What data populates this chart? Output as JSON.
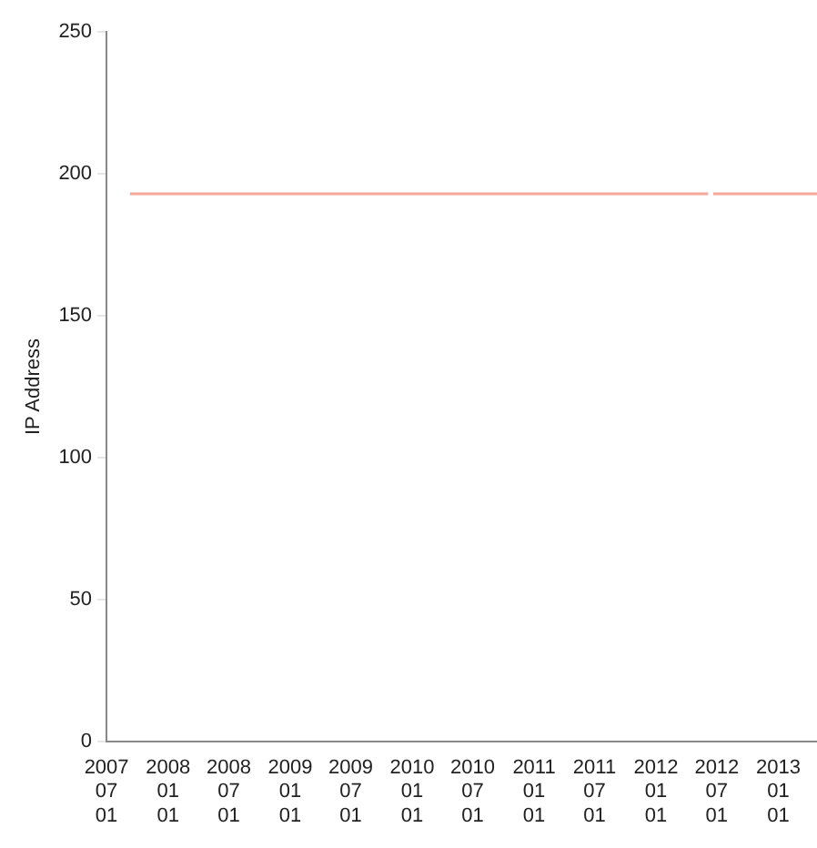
{
  "chart_data": {
    "type": "line",
    "ylabel": "IP Address",
    "x": [
      "2007-09-09",
      "2012-06-05",
      "2012-06-08",
      "2012-06-20",
      "2013-04-27"
    ],
    "series": [
      {
        "color": "#f4a89a",
        "values": [
          193,
          193,
          null,
          193,
          193
        ]
      }
    ],
    "xlim": [
      "2007-07-01",
      "2013-04-27"
    ],
    "xticks": [
      {
        "value": "2007-07-01",
        "label": "2007 07 01"
      },
      {
        "value": "2008-01-01",
        "label": "2008 01 01"
      },
      {
        "value": "2008-07-01",
        "label": "2008 07 01"
      },
      {
        "value": "2009-01-01",
        "label": "2009 01 01"
      },
      {
        "value": "2009-07-01",
        "label": "2009 07 01"
      },
      {
        "value": "2010-01-01",
        "label": "2010 01 01"
      },
      {
        "value": "2010-07-01",
        "label": "2010 07 01"
      },
      {
        "value": "2011-01-01",
        "label": "2011 01 01"
      },
      {
        "value": "2011-07-01",
        "label": "2011 07 01"
      },
      {
        "value": "2012-01-01",
        "label": "2012 01 01"
      },
      {
        "value": "2012-07-01",
        "label": "2012 07 01"
      },
      {
        "value": "2013-01-01",
        "label": "2013 01 01"
      }
    ],
    "ylim": [
      0,
      250
    ],
    "yticks": [
      0,
      50,
      100,
      150,
      200,
      250
    ],
    "grid": false,
    "legend": false,
    "marker": "none",
    "line_style": "solid"
  }
}
